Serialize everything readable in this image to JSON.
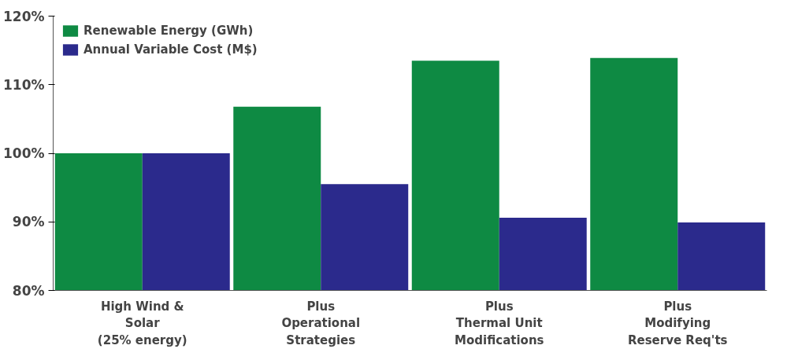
{
  "chart_data": {
    "type": "bar",
    "categories": [
      "High Wind &\nSolar\n(25% energy)",
      "Plus\nOperational\nStrategies",
      "Plus\nThermal Unit\nModifications",
      "Plus\nModifying\nReserve Req'ts"
    ],
    "series": [
      {
        "name": "Renewable Energy (GWh)",
        "color": "#0e8a43",
        "values": [
          100,
          106.8,
          113.5,
          113.9
        ]
      },
      {
        "name": "Annual Variable Cost (M$)",
        "color": "#2b2a8c",
        "values": [
          100,
          95.5,
          90.6,
          89.9
        ]
      }
    ],
    "ylim": [
      80,
      120
    ],
    "yticks": [
      {
        "value": 80,
        "label": "80%"
      },
      {
        "value": 90,
        "label": "90%"
      },
      {
        "value": 100,
        "label": "100%"
      },
      {
        "value": 110,
        "label": "110%"
      },
      {
        "value": 120,
        "label": "120%"
      }
    ],
    "grid": false,
    "legend": "top left"
  }
}
